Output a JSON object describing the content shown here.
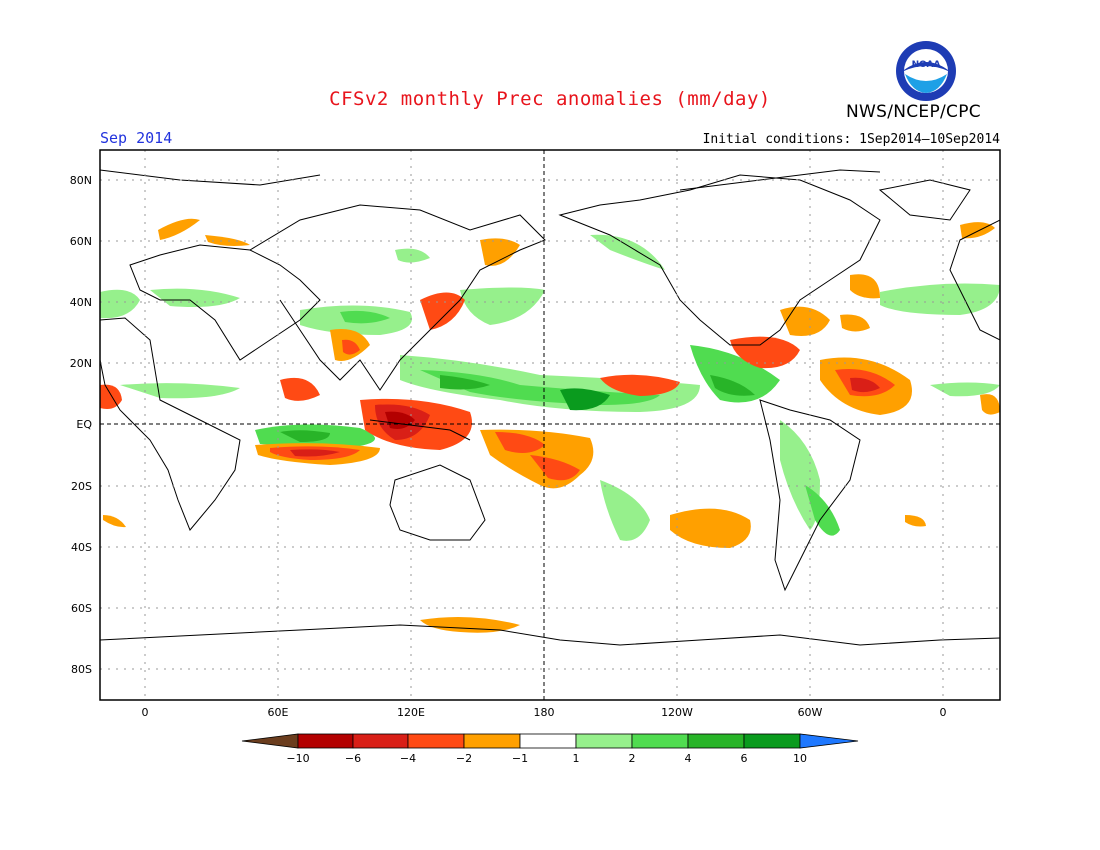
{
  "header": {
    "title": "CFSv2 monthly Prec anomalies (mm/day)",
    "organization": "NWS/NCEP/CPC",
    "period": "Sep 2014",
    "initial_conditions": "Initial conditions: 1Sep2014–10Sep2014",
    "logo_text": "NOAA"
  },
  "map": {
    "lat_labels": [
      "80N",
      "60N",
      "40N",
      "20N",
      "EQ",
      "20S",
      "40S",
      "60S",
      "80S"
    ],
    "lon_labels": [
      "0",
      "60E",
      "120E",
      "180",
      "120W",
      "60W",
      "0"
    ]
  },
  "colorbar": {
    "labels": [
      "−10",
      "−6",
      "−4",
      "−2",
      "−1",
      "1",
      "2",
      "4",
      "6",
      "10"
    ],
    "colors": [
      "#6b3d1e",
      "#b30000",
      "#d91f17",
      "#ff4a14",
      "#ffa000",
      "#ffffff",
      "#96f08c",
      "#50dc50",
      "#28b428",
      "#0a9b1e",
      "#1e78ff"
    ]
  }
}
